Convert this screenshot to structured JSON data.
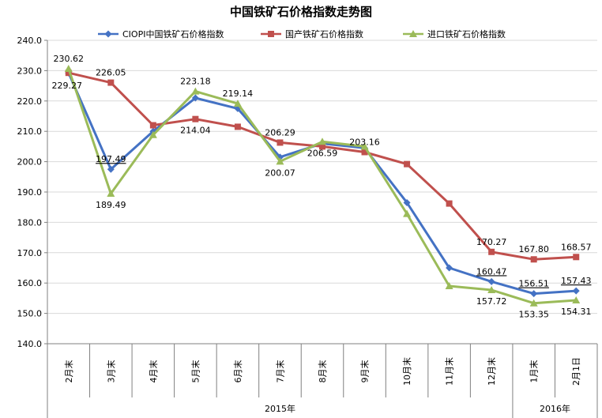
{
  "chart_data": {
    "type": "line",
    "title": "中国铁矿石价格指数走势图",
    "categories": [
      "2月末",
      "3月末",
      "4月末",
      "5月末",
      "6月末",
      "7月末",
      "8月末",
      "9月末",
      "10月末",
      "11月末",
      "12月末",
      "1月末",
      "2月1日"
    ],
    "year_groups": [
      {
        "label": "2015年",
        "count": 11
      },
      {
        "label": "2016年",
        "count": 2
      }
    ],
    "ylim": [
      140,
      240
    ],
    "yticks": [
      "140.0",
      "150.0",
      "160.0",
      "170.0",
      "180.0",
      "190.0",
      "200.0",
      "210.0",
      "220.0",
      "230.0",
      "240.0"
    ],
    "xlabel": "",
    "ylabel": "",
    "grid": true,
    "legend_position": "top",
    "series": [
      {
        "name": "CIOPI中国铁矿石价格指数",
        "color": "#4472c4",
        "marker": "diamond",
        "values": [
          229.27,
          197.49,
          210.0,
          221.0,
          217.5,
          201.5,
          206.0,
          204.5,
          186.5,
          165.0,
          160.47,
          156.51,
          157.43
        ]
      },
      {
        "name": "国产铁矿石价格指数",
        "color": "#c0504d",
        "marker": "square",
        "values": [
          229.27,
          226.05,
          212.0,
          214.04,
          211.5,
          206.29,
          205.0,
          203.16,
          199.2,
          186.2,
          170.27,
          167.8,
          168.57
        ]
      },
      {
        "name": "进口铁矿石价格指数",
        "color": "#9bbb59",
        "marker": "triangle",
        "values": [
          230.62,
          189.49,
          208.8,
          223.18,
          219.14,
          200.07,
          206.59,
          205.0,
          182.8,
          159.0,
          157.72,
          153.35,
          154.31
        ]
      }
    ],
    "data_labels": [
      {
        "series": 2,
        "index": 0,
        "text": "230.62",
        "pos": "above"
      },
      {
        "series": 0,
        "index": 0,
        "text": "229.27",
        "pos": "below-left"
      },
      {
        "series": 1,
        "index": 1,
        "text": "226.05",
        "pos": "above"
      },
      {
        "series": 0,
        "index": 1,
        "text": "197.49",
        "pos": "above",
        "underline": true
      },
      {
        "series": 2,
        "index": 1,
        "text": "189.49",
        "pos": "below"
      },
      {
        "series": 2,
        "index": 3,
        "text": "223.18",
        "pos": "above"
      },
      {
        "series": 1,
        "index": 3,
        "text": "214.04",
        "pos": "below"
      },
      {
        "series": 2,
        "index": 4,
        "text": "219.14",
        "pos": "above"
      },
      {
        "series": 1,
        "index": 5,
        "text": "206.29",
        "pos": "above"
      },
      {
        "series": 2,
        "index": 5,
        "text": "200.07",
        "pos": "below"
      },
      {
        "series": 2,
        "index": 6,
        "text": "206.59",
        "pos": "below"
      },
      {
        "series": 1,
        "index": 7,
        "text": "203.16",
        "pos": "above"
      },
      {
        "series": 1,
        "index": 10,
        "text": "170.27",
        "pos": "above"
      },
      {
        "series": 0,
        "index": 10,
        "text": "160.47",
        "pos": "above",
        "underline": true
      },
      {
        "series": 2,
        "index": 10,
        "text": "157.72",
        "pos": "below"
      },
      {
        "series": 1,
        "index": 11,
        "text": "167.80",
        "pos": "above"
      },
      {
        "series": 0,
        "index": 11,
        "text": "156.51",
        "pos": "above",
        "underline": true
      },
      {
        "series": 2,
        "index": 11,
        "text": "153.35",
        "pos": "below"
      },
      {
        "series": 1,
        "index": 12,
        "text": "168.57",
        "pos": "above"
      },
      {
        "series": 0,
        "index": 12,
        "text": "157.43",
        "pos": "above",
        "underline": true
      },
      {
        "series": 2,
        "index": 12,
        "text": "154.31",
        "pos": "below"
      }
    ]
  }
}
